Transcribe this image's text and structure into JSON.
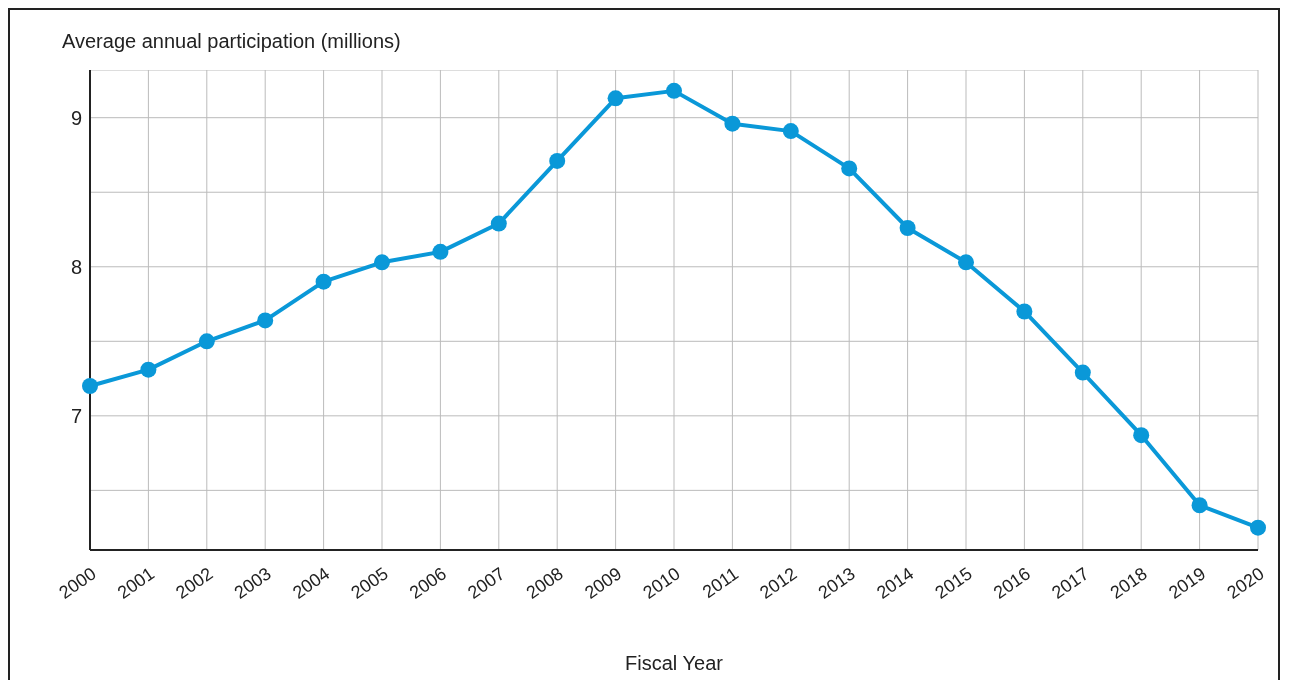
{
  "chart_data": {
    "type": "line",
    "ylabel": "Average annual participation (millions)",
    "xlabel": "Fiscal Year",
    "categories": [
      "2000",
      "2001",
      "2002",
      "2003",
      "2004",
      "2005",
      "2006",
      "2007",
      "2008",
      "2009",
      "2010",
      "2011",
      "2012",
      "2013",
      "2014",
      "2015",
      "2016",
      "2017",
      "2018",
      "2019",
      "2020"
    ],
    "series": [
      {
        "color": "#0a98d8",
        "values": [
          7.2,
          7.31,
          7.5,
          7.64,
          7.9,
          8.03,
          8.1,
          8.29,
          8.71,
          9.13,
          9.18,
          8.96,
          8.91,
          8.66,
          8.26,
          8.03,
          7.7,
          7.29,
          6.87,
          6.4,
          6.25
        ]
      }
    ],
    "ylim": [
      6.1,
      9.32
    ],
    "yticks": [
      {
        "value": 6.5,
        "label": null
      },
      7,
      {
        "value": 7.5,
        "label": null
      },
      8,
      {
        "value": 8.5,
        "label": null
      },
      9
    ],
    "grid": true,
    "marker": "circle",
    "line_style": "solid",
    "legend": false
  }
}
